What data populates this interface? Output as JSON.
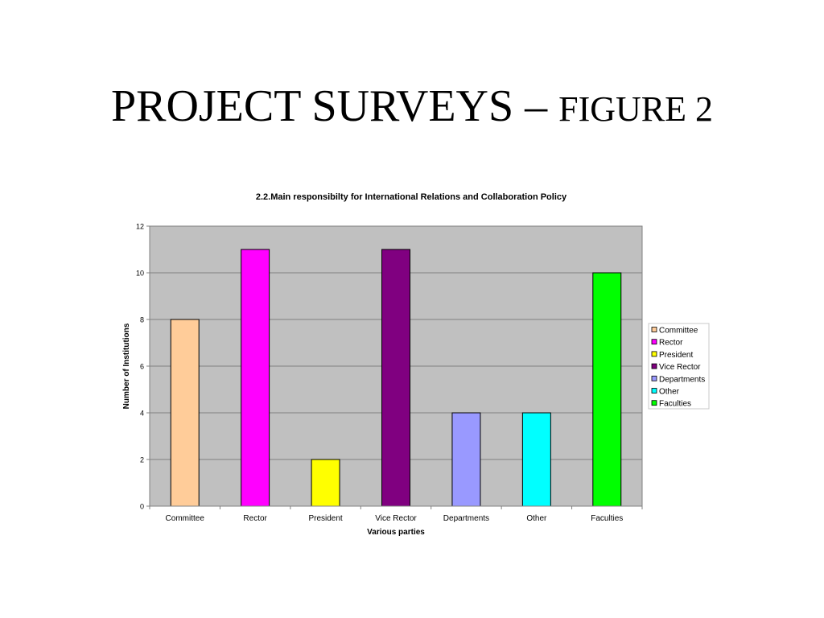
{
  "slide": {
    "title_main": "PROJECT SURVEYS – ",
    "title_sub": "FIGURE 2"
  },
  "chart_data": {
    "type": "bar",
    "title": "2.2.Main responsibilty for International Relations and Collaboration Policy",
    "xlabel": "Various parties",
    "ylabel": "Number of Institutions",
    "categories": [
      "Committee",
      "Rector",
      "President",
      "Vice Rector",
      "Departments",
      "Other",
      "Faculties"
    ],
    "values": [
      8,
      11,
      2,
      11,
      4,
      4,
      10
    ],
    "colors": [
      "#FFCC99",
      "#FF00FF",
      "#FFFF00",
      "#800080",
      "#9999FF",
      "#00FFFF",
      "#00FF00"
    ],
    "ylim": [
      0,
      12
    ],
    "yticks": [
      0,
      2,
      4,
      6,
      8,
      10,
      12
    ],
    "grid": true,
    "plot_background": "#C0C0C0",
    "legend": {
      "placement": "right",
      "entries": [
        "Committee",
        "Rector",
        "President",
        "Vice Rector",
        "Departments",
        "Other",
        "Faculties"
      ]
    }
  }
}
